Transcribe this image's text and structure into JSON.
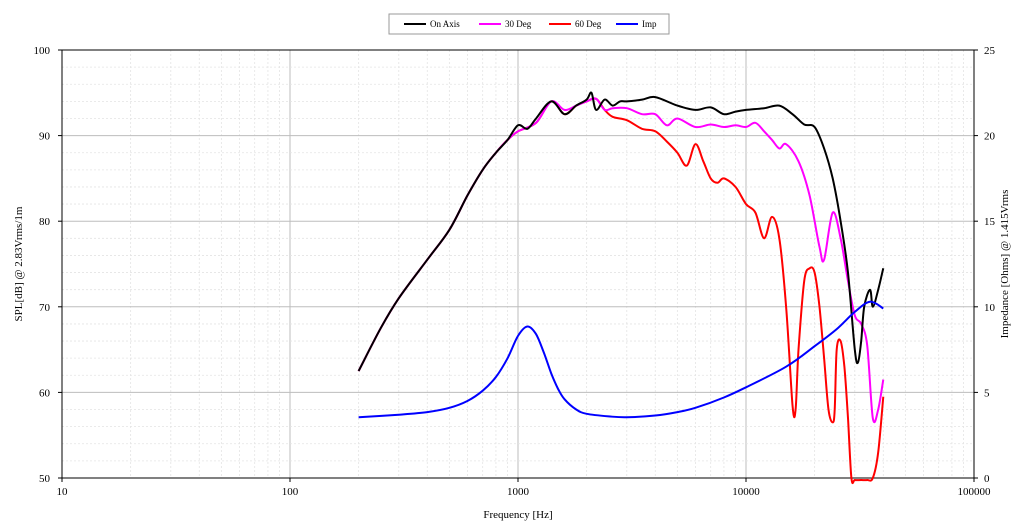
{
  "chart_data": {
    "type": "line",
    "title": "",
    "xlabel": "Frequency [Hz]",
    "ylabel": "SPL[dB] @ 2.83Vrms/1m",
    "y2label": "Impedance [Ohms] @ 1.415Vrms",
    "x_scale": "log",
    "xlim": [
      10,
      100000
    ],
    "ylim": [
      50,
      100
    ],
    "y2lim": [
      0,
      25
    ],
    "grid": true,
    "legend_position": "top-center",
    "x_ticks": [
      "10",
      "100",
      "1000",
      "10000",
      "100000"
    ],
    "y_ticks": [
      "50",
      "60",
      "70",
      "80",
      "90",
      "100"
    ],
    "y2_ticks": [
      "0",
      "5",
      "10",
      "15",
      "20",
      "25"
    ],
    "series": [
      {
        "name": "On Axis",
        "color": "#000000",
        "axis": "left",
        "x": [
          200,
          250,
          300,
          400,
          500,
          600,
          700,
          800,
          900,
          1000,
          1100,
          1200,
          1400,
          1600,
          1800,
          2000,
          2100,
          2200,
          2400,
          2600,
          2800,
          3000,
          3500,
          4000,
          5000,
          6000,
          7000,
          8000,
          9000,
          10000,
          12000,
          14000,
          16000,
          18000,
          20000,
          22000,
          24000,
          26000,
          28000,
          30000,
          31000,
          32000,
          33000,
          35000,
          36000,
          38000,
          40000
        ],
        "y": [
          62.5,
          67.5,
          71,
          75.5,
          79,
          83,
          86,
          88,
          89.5,
          91.2,
          90.8,
          92,
          94,
          92.5,
          93.5,
          94.2,
          95,
          93,
          94.2,
          93.5,
          94,
          94,
          94.2,
          94.5,
          93.5,
          93,
          93.3,
          92.5,
          92.8,
          93,
          93.2,
          93.5,
          92.5,
          91.3,
          91,
          88.5,
          85,
          80,
          74,
          65,
          63.5,
          66,
          70,
          72,
          70,
          72,
          74.5
        ]
      },
      {
        "name": "30 Deg",
        "color": "#ff00ff",
        "axis": "left",
        "x": [
          200,
          250,
          300,
          400,
          500,
          600,
          700,
          800,
          900,
          1000,
          1200,
          1400,
          1600,
          1800,
          2000,
          2200,
          2400,
          2600,
          3000,
          3500,
          4000,
          4500,
          5000,
          6000,
          7000,
          8000,
          9000,
          10000,
          11000,
          12000,
          13000,
          14000,
          15000,
          17000,
          19000,
          21000,
          22000,
          24000,
          26000,
          28000,
          30000,
          32000,
          34000,
          36000,
          38000,
          40000
        ],
        "y": [
          62.5,
          67.5,
          71,
          75.5,
          79,
          83,
          86,
          88,
          89.5,
          90.5,
          91.5,
          94,
          93,
          93.5,
          94,
          94.3,
          93,
          93.2,
          93.2,
          92.5,
          92.5,
          91.2,
          92,
          91,
          91.3,
          91,
          91.2,
          91,
          91.5,
          90.5,
          89.5,
          88.5,
          89,
          87,
          83,
          77,
          75.5,
          81,
          78,
          73,
          69,
          68,
          65.5,
          57,
          58,
          61.5
        ]
      },
      {
        "name": "60 Deg",
        "color": "#ff0000",
        "axis": "left",
        "x": [
          200,
          250,
          300,
          400,
          500,
          600,
          700,
          800,
          900,
          1000,
          1200,
          1400,
          1600,
          1800,
          2000,
          2200,
          2400,
          2600,
          3000,
          3500,
          4000,
          4500,
          5000,
          5500,
          6000,
          6500,
          7000,
          7500,
          8000,
          9000,
          10000,
          11000,
          12000,
          13000,
          14000,
          15000,
          16000,
          16500,
          17000,
          18000,
          19000,
          20000,
          21000,
          22000,
          23000,
          24000,
          24500,
          25000,
          26000,
          27000,
          28000,
          29000,
          30000,
          32000,
          34000,
          36000,
          38000,
          40000
        ],
        "y": [
          62.5,
          67.5,
          71,
          75.5,
          79,
          83,
          86,
          88,
          89.5,
          90.5,
          91.5,
          94,
          92.5,
          93.5,
          94,
          94.3,
          93,
          92.2,
          91.8,
          90.8,
          90.5,
          89.3,
          88,
          86.5,
          89,
          87,
          85,
          84.5,
          85,
          84,
          82,
          81,
          78,
          80.5,
          78,
          70,
          58.5,
          58,
          65,
          73,
          74.5,
          74,
          70,
          64,
          58,
          56.5,
          58,
          65,
          66,
          63,
          57,
          50,
          48.5,
          48,
          48.5,
          50,
          53,
          59.5
        ]
      },
      {
        "name": "Imp",
        "color": "#0000ff",
        "axis": "right",
        "x": [
          200,
          300,
          400,
          500,
          600,
          700,
          800,
          900,
          1000,
          1100,
          1200,
          1300,
          1400,
          1500,
          1600,
          1800,
          2000,
          2500,
          3000,
          4000,
          5000,
          6000,
          8000,
          10000,
          15000,
          20000,
          25000,
          30000,
          35000,
          40000
        ],
        "y": [
          3.55,
          3.7,
          3.85,
          4.1,
          4.5,
          5.1,
          5.9,
          7.0,
          8.3,
          8.85,
          8.4,
          7.3,
          6.1,
          5.2,
          4.6,
          4.0,
          3.75,
          3.6,
          3.55,
          3.65,
          3.85,
          4.1,
          4.7,
          5.3,
          6.5,
          7.7,
          8.7,
          9.7,
          10.3,
          9.9
        ]
      }
    ]
  }
}
